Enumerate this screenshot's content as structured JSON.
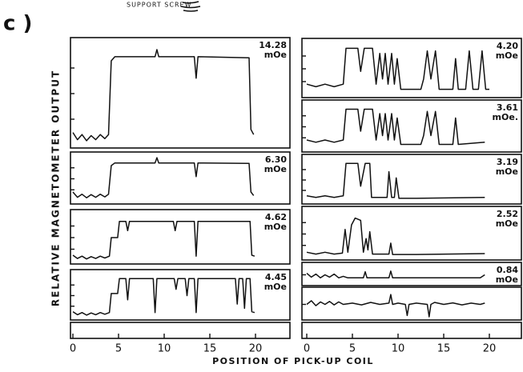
{
  "figure": {
    "label": "c )",
    "annotation": "SUPPORT SCREW",
    "ylabel": "RELATIVE MAGNETOMETER OUTPUT",
    "xlabel": "POSITION OF PICK-UP COIL"
  },
  "chart_data": [
    {
      "type": "line",
      "xlim": [
        0,
        23.5
      ],
      "xticks": [
        0,
        5,
        10,
        15,
        20
      ],
      "panels": [
        {
          "label": [
            "14.28",
            "mOe"
          ],
          "ylim": [
            0,
            1
          ],
          "yticks": [
            0.25,
            0.5,
            0.75
          ],
          "x": [
            0,
            0.5,
            1,
            1.5,
            2,
            2.5,
            3,
            3.5,
            3.9,
            4.2,
            4.6,
            9,
            9.2,
            9.4,
            13.3,
            13.5,
            13.7,
            19.3,
            19.5,
            19.8
          ],
          "values": [
            0.12,
            0.05,
            0.1,
            0.04,
            0.09,
            0.05,
            0.1,
            0.06,
            0.1,
            0.82,
            0.86,
            0.86,
            0.93,
            0.86,
            0.86,
            0.65,
            0.86,
            0.85,
            0.15,
            0.1
          ]
        },
        {
          "label": [
            "6.30",
            "mOe"
          ],
          "ylim": [
            0,
            1
          ],
          "yticks": [
            0.25,
            0.5,
            0.75
          ],
          "x": [
            0,
            0.5,
            1,
            1.5,
            2,
            2.5,
            3,
            3.5,
            3.9,
            4.2,
            4.6,
            9,
            9.2,
            9.4,
            13.3,
            13.5,
            13.7,
            19.3,
            19.5,
            19.8
          ],
          "values": [
            0.2,
            0.08,
            0.15,
            0.07,
            0.14,
            0.08,
            0.15,
            0.09,
            0.15,
            0.8,
            0.86,
            0.86,
            0.98,
            0.86,
            0.86,
            0.55,
            0.86,
            0.85,
            0.2,
            0.12
          ]
        },
        {
          "label": [
            "4.62",
            "mOe"
          ],
          "ylim": [
            0,
            1
          ],
          "yticks": [
            0.25,
            0.5,
            0.75
          ],
          "x": [
            0,
            0.5,
            1,
            1.5,
            2,
            2.5,
            3,
            3.5,
            4,
            4.2,
            4.9,
            5.1,
            5.8,
            6,
            6.2,
            11,
            11.2,
            11.4,
            13.3,
            13.5,
            13.7,
            19.4,
            19.6,
            19.9
          ],
          "values": [
            0.12,
            0.05,
            0.1,
            0.04,
            0.09,
            0.05,
            0.1,
            0.06,
            0.1,
            0.5,
            0.5,
            0.85,
            0.85,
            0.65,
            0.85,
            0.85,
            0.65,
            0.85,
            0.85,
            0.1,
            0.85,
            0.85,
            0.12,
            0.1
          ]
        },
        {
          "label": [
            "4.45",
            "mOe"
          ],
          "ylim": [
            0,
            1
          ],
          "yticks": [
            0.25,
            0.5,
            0.75
          ],
          "x": [
            0,
            0.5,
            1,
            1.5,
            2,
            2.5,
            3,
            3.5,
            4,
            4.2,
            4.9,
            5.1,
            5.8,
            6,
            6.2,
            8.8,
            9,
            9.2,
            11.1,
            11.3,
            11.5,
            12.3,
            12.5,
            12.7,
            13.3,
            13.5,
            13.7,
            17.8,
            18,
            18.2,
            18.6,
            18.8,
            19,
            19.4,
            19.6,
            19.9
          ],
          "values": [
            0.12,
            0.05,
            0.1,
            0.04,
            0.09,
            0.05,
            0.1,
            0.06,
            0.1,
            0.55,
            0.55,
            0.9,
            0.9,
            0.4,
            0.9,
            0.9,
            0.1,
            0.9,
            0.9,
            0.65,
            0.9,
            0.9,
            0.5,
            0.9,
            0.9,
            0.1,
            0.9,
            0.9,
            0.3,
            0.9,
            0.9,
            0.2,
            0.9,
            0.9,
            0.12,
            0.1
          ]
        }
      ]
    },
    {
      "type": "line",
      "xlim": [
        0,
        23.5
      ],
      "xticks": [
        0,
        5,
        10,
        15,
        20
      ],
      "panels": [
        {
          "label": [
            "4.20",
            "mOe"
          ],
          "ylim": [
            0,
            1
          ],
          "yticks": [
            0.25,
            0.5,
            0.75
          ],
          "x": [
            0,
            1,
            2,
            3,
            4,
            4.3,
            5.6,
            5.9,
            6.3,
            7.2,
            7.6,
            8.0,
            8.3,
            8.6,
            8.9,
            9.3,
            9.6,
            9.9,
            10.3,
            12.5,
            12.8,
            13.2,
            13.6,
            14.1,
            14.5,
            16,
            16.3,
            16.6,
            17.4,
            17.8,
            18.2,
            18.8,
            19.2,
            19.6,
            20
          ],
          "values": [
            0.2,
            0.15,
            0.2,
            0.15,
            0.2,
            0.9,
            0.9,
            0.45,
            0.9,
            0.9,
            0.2,
            0.8,
            0.3,
            0.8,
            0.2,
            0.8,
            0.2,
            0.7,
            0.1,
            0.1,
            0.3,
            0.85,
            0.3,
            0.85,
            0.1,
            0.1,
            0.7,
            0.1,
            0.1,
            0.85,
            0.1,
            0.1,
            0.85,
            0.1,
            0.1
          ]
        },
        {
          "label": [
            "3.61",
            "mOe."
          ],
          "ylim": [
            0,
            1
          ],
          "yticks": [
            0.25,
            0.5,
            0.75
          ],
          "x": [
            0,
            1,
            2,
            3,
            4,
            4.3,
            5.6,
            5.9,
            6.3,
            7.2,
            7.6,
            8.0,
            8.3,
            8.6,
            8.9,
            9.3,
            9.6,
            9.9,
            10.3,
            12.5,
            12.8,
            13.2,
            13.6,
            14.1,
            14.5,
            16,
            16.3,
            16.6,
            19.5
          ],
          "values": [
            0.2,
            0.15,
            0.2,
            0.15,
            0.2,
            0.9,
            0.9,
            0.4,
            0.9,
            0.9,
            0.2,
            0.8,
            0.3,
            0.8,
            0.2,
            0.8,
            0.2,
            0.7,
            0.1,
            0.1,
            0.3,
            0.85,
            0.3,
            0.85,
            0.1,
            0.1,
            0.7,
            0.1,
            0.15
          ]
        },
        {
          "label": [
            "3.19",
            "mOe"
          ],
          "ylim": [
            0,
            1
          ],
          "yticks": [
            0.25,
            0.5,
            0.75
          ],
          "x": [
            0,
            1,
            2,
            3,
            4,
            4.3,
            5.6,
            5.9,
            6.4,
            6.9,
            7.1,
            8.8,
            9.0,
            9.3,
            9.6,
            9.8,
            10.1,
            12,
            19.5
          ],
          "values": [
            0.12,
            0.08,
            0.12,
            0.08,
            0.12,
            0.9,
            0.9,
            0.35,
            0.9,
            0.9,
            0.08,
            0.08,
            0.7,
            0.08,
            0.08,
            0.55,
            0.06,
            0.06,
            0.08
          ]
        },
        {
          "label": [
            "2.52",
            "mOe"
          ],
          "ylim": [
            0,
            1
          ],
          "yticks": [
            0.25,
            0.5,
            0.75
          ],
          "x": [
            0,
            1,
            2,
            3,
            3.9,
            4.2,
            4.5,
            4.9,
            5.3,
            5.9,
            6.2,
            6.5,
            6.7,
            6.9,
            7.2,
            9,
            9.2,
            9.4,
            12,
            19.5
          ],
          "values": [
            0.1,
            0.06,
            0.1,
            0.06,
            0.08,
            0.6,
            0.1,
            0.7,
            0.85,
            0.8,
            0.1,
            0.4,
            0.15,
            0.55,
            0.06,
            0.06,
            0.3,
            0.05,
            0.05,
            0.07
          ]
        },
        {
          "label": [
            "0.84",
            "mOe"
          ],
          "ylim": [
            0,
            1
          ],
          "yticks": [
            0.5
          ],
          "x": [
            0,
            0.5,
            1,
            1.5,
            2,
            2.5,
            3,
            3.5,
            4,
            4.5,
            6.2,
            6.4,
            6.6,
            9,
            9.2,
            9.4,
            12,
            15,
            19,
            19.5
          ],
          "values": [
            0.6,
            0.35,
            0.55,
            0.3,
            0.5,
            0.35,
            0.55,
            0.3,
            0.4,
            0.3,
            0.3,
            0.7,
            0.3,
            0.3,
            0.75,
            0.3,
            0.3,
            0.3,
            0.3,
            0.5
          ]
        },
        {
          "label": [],
          "ylim": [
            0,
            1
          ],
          "yticks": [
            0.5
          ],
          "x": [
            0,
            0.5,
            1,
            1.5,
            2,
            2.5,
            3,
            3.5,
            4,
            5,
            6,
            7,
            8,
            9,
            9.2,
            9.4,
            10,
            10.8,
            11,
            11.2,
            12,
            13.2,
            13.4,
            13.6,
            14,
            15,
            16,
            17,
            18,
            19,
            19.5
          ],
          "values": [
            0.5,
            0.65,
            0.45,
            0.6,
            0.5,
            0.62,
            0.48,
            0.6,
            0.5,
            0.55,
            0.48,
            0.58,
            0.5,
            0.55,
            0.9,
            0.5,
            0.55,
            0.5,
            0.05,
            0.5,
            0.55,
            0.5,
            0.0,
            0.5,
            0.58,
            0.5,
            0.56,
            0.48,
            0.55,
            0.5,
            0.55
          ]
        }
      ]
    }
  ]
}
